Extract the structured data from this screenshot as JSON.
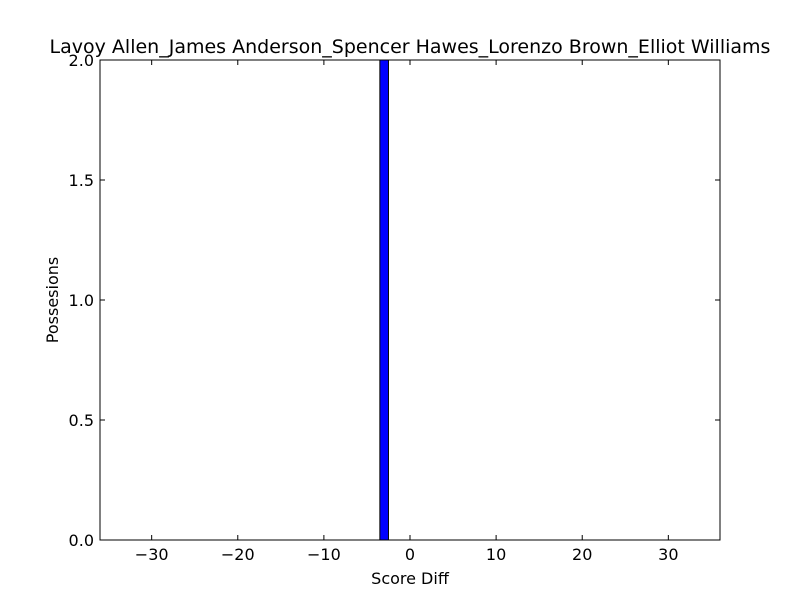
{
  "chart_data": {
    "type": "bar",
    "title": "Lavoy Allen_James Anderson_Spencer Hawes_Lorenzo Brown_Elliot Williams",
    "xlabel": "Score Diff",
    "ylabel": "Possesions",
    "xlim": [
      -36,
      36
    ],
    "ylim": [
      0,
      2
    ],
    "xticks": [
      -30,
      -20,
      -10,
      0,
      10,
      20,
      30
    ],
    "xtick_labels": [
      "−30",
      "−20",
      "−10",
      "0",
      "10",
      "20",
      "30"
    ],
    "yticks": [
      0,
      0.5,
      1,
      1.5,
      2
    ],
    "ytick_labels": [
      "0.0",
      "0.5",
      "1.0",
      "1.5",
      "2.0"
    ],
    "bar_width": 1,
    "bars": [
      {
        "x": -3,
        "value": 2
      }
    ],
    "colors": {
      "bar": "#0000ff",
      "edge": "#000000"
    },
    "grid": false
  }
}
